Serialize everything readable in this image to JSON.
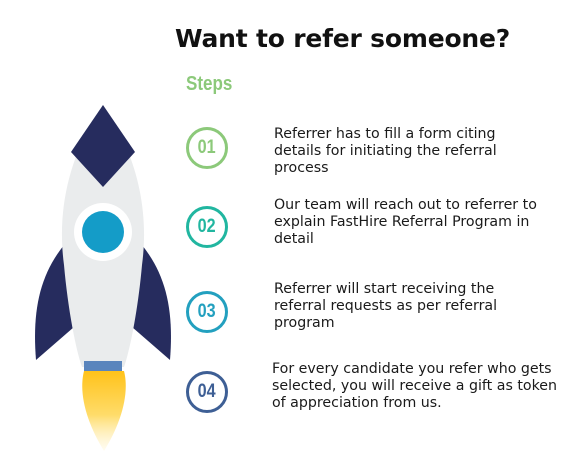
{
  "title": "Want to refer someone?",
  "steps_heading": "Steps",
  "steps": [
    {
      "number": "01",
      "text": "Referrer has to fill a form citing details for  initiating the referral process",
      "color": "#8cc97a"
    },
    {
      "number": "02",
      "text": "Our team will reach out to referrer to explain FastHire Referral Program in detail",
      "color": "#21b6a0"
    },
    {
      "number": "03",
      "text": "Referrer will start receiving the referral requests  as per referral program",
      "color": "#23a0bf"
    },
    {
      "number": "04",
      "text": "For every candidate you refer who gets selected, you will receive a gift as token of appreciation from us.",
      "color": "#3e5f95"
    }
  ],
  "colors": {
    "rocket_body": "#eaeced",
    "rocket_dark": "#262c5e",
    "rocket_window": "#149cc8",
    "rocket_nozzle": "#5a85bd",
    "flame": "#ffd23f"
  },
  "icons": [
    "rocket-illustration"
  ]
}
